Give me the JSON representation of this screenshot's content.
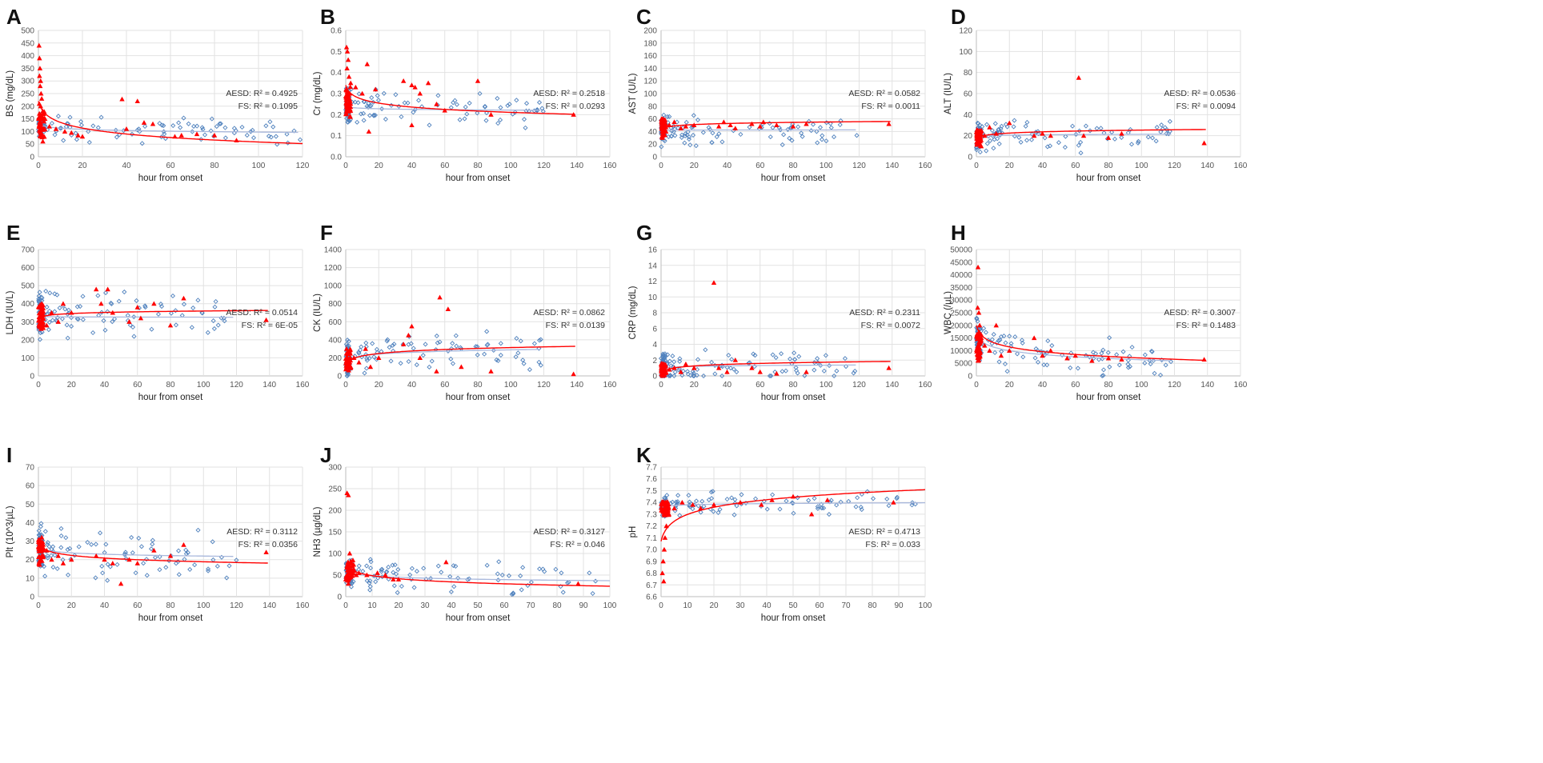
{
  "colors": {
    "aesd": "#ff0000",
    "fs": "#4f81bd",
    "fs_trend": "#a9b8dc",
    "grid": "#e2e2e2"
  },
  "chart_data": [
    {
      "letter": "A",
      "type": "scatter",
      "ylabel": "BS (mg/dL)",
      "xlabel": "hour from onset",
      "xlim": [
        0,
        120
      ],
      "xstep": 20,
      "ylim": [
        0,
        500
      ],
      "ystep": 50,
      "r2_aesd": "AESD: R² = 0.4925",
      "r2_fs": "FS: R² = 0.1095",
      "aesd_trend": {
        "model": "log",
        "a": 220,
        "b": -35
      },
      "fs_trend": {
        "model": "log",
        "a": 130,
        "b": -7
      },
      "fs_seed": 11,
      "fs_base": 125,
      "fs_spread": 40,
      "aesd_seed": 3,
      "aesd_base": 120,
      "aesd_spread": 60,
      "aesd_points": [
        [
          0.3,
          440
        ],
        [
          0.5,
          390
        ],
        [
          0.7,
          350
        ],
        [
          0.5,
          320
        ],
        [
          1,
          300
        ],
        [
          0.8,
          280
        ],
        [
          1.2,
          250
        ],
        [
          1.5,
          230
        ],
        [
          0.4,
          210
        ],
        [
          1,
          200
        ],
        [
          2,
          180
        ],
        [
          1.6,
          160
        ],
        [
          3,
          150
        ],
        [
          2.5,
          140
        ],
        [
          5,
          120
        ],
        [
          8,
          110
        ],
        [
          12,
          100
        ],
        [
          15,
          95
        ],
        [
          18,
          85
        ],
        [
          20,
          80
        ],
        [
          38,
          228
        ],
        [
          45,
          220
        ],
        [
          40,
          110
        ],
        [
          48,
          135
        ],
        [
          52,
          130
        ],
        [
          62,
          80
        ],
        [
          65,
          85
        ],
        [
          72,
          90
        ],
        [
          80,
          85
        ],
        [
          90,
          65
        ]
      ]
    },
    {
      "letter": "B",
      "type": "scatter",
      "ylabel": "Cr (mg/dL)",
      "xlabel": "hour from onset",
      "xlim": [
        0,
        160
      ],
      "xstep": 20,
      "ylim": [
        0,
        0.6
      ],
      "ystep": 0.1,
      "r2_aesd": "AESD: R² = 0.2518",
      "r2_fs": "FS: R² = 0.0293",
      "aesd_trend": {
        "model": "log",
        "a": 0.34,
        "b": -0.028
      },
      "fs_trend": {
        "model": "log",
        "a": 0.24,
        "b": -0.004
      },
      "fs_seed": 17,
      "fs_base": 0.23,
      "fs_spread": 0.07,
      "aesd_seed": 5,
      "aesd_base": 0.26,
      "aesd_spread": 0.08,
      "aesd_points": [
        [
          0.5,
          0.52
        ],
        [
          1,
          0.5
        ],
        [
          1.5,
          0.46
        ],
        [
          0.8,
          0.42
        ],
        [
          2,
          0.38
        ],
        [
          3,
          0.35
        ],
        [
          6,
          0.33
        ],
        [
          13,
          0.44
        ],
        [
          10,
          0.3
        ],
        [
          18,
          0.32
        ],
        [
          35,
          0.36
        ],
        [
          40,
          0.34
        ],
        [
          42,
          0.33
        ],
        [
          45,
          0.3
        ],
        [
          50,
          0.35
        ],
        [
          55,
          0.25
        ],
        [
          60,
          0.22
        ],
        [
          80,
          0.36
        ],
        [
          88,
          0.2
        ],
        [
          138,
          0.2
        ],
        [
          14,
          0.12
        ],
        [
          40,
          0.15
        ]
      ]
    },
    {
      "letter": "C",
      "type": "scatter",
      "ylabel": "AST (U/L)",
      "xlabel": "hour from onset",
      "xlim": [
        0,
        160
      ],
      "xstep": 20,
      "ylim": [
        0,
        200
      ],
      "ystep": 20,
      "r2_aesd": "AESD: R² = 0.0582",
      "r2_fs": "FS: R² = 0.0011",
      "aesd_trend": {
        "model": "log",
        "a": 43,
        "b": 2.6
      },
      "fs_trend": {
        "model": "log",
        "a": 42,
        "b": 0.1
      },
      "fs_seed": 23,
      "fs_base": 42,
      "fs_spread": 18,
      "aesd_seed": 7,
      "aesd_base": 46,
      "aesd_spread": 14,
      "aesd_points": [
        [
          0.5,
          60
        ],
        [
          1,
          55
        ],
        [
          1.5,
          50
        ],
        [
          2,
          45
        ],
        [
          3,
          40
        ],
        [
          5,
          50
        ],
        [
          8,
          55
        ],
        [
          12,
          45
        ],
        [
          15,
          48
        ],
        [
          20,
          50
        ],
        [
          35,
          48
        ],
        [
          38,
          55
        ],
        [
          42,
          50
        ],
        [
          45,
          45
        ],
        [
          55,
          52
        ],
        [
          60,
          48
        ],
        [
          62,
          55
        ],
        [
          70,
          50
        ],
        [
          80,
          48
        ],
        [
          88,
          52
        ],
        [
          138,
          52
        ],
        [
          0.8,
          30
        ]
      ]
    },
    {
      "letter": "D",
      "type": "scatter",
      "ylabel": "ALT (IU/L)",
      "xlabel": "hour from onset",
      "xlim": [
        0,
        160
      ],
      "xstep": 20,
      "ylim": [
        0,
        120
      ],
      "ystep": 20,
      "r2_aesd": "AESD: R² = 0.0536",
      "r2_fs": "FS: R² = 0.0094",
      "aesd_trend": {
        "model": "log",
        "a": 17,
        "b": 1.8
      },
      "fs_trend": {
        "model": "log",
        "a": 19,
        "b": 0.5
      },
      "fs_seed": 29,
      "fs_base": 20,
      "fs_spread": 12,
      "aesd_seed": 9,
      "aesd_base": 18,
      "aesd_spread": 8,
      "aesd_points": [
        [
          0.5,
          20
        ],
        [
          1,
          18
        ],
        [
          1.5,
          15
        ],
        [
          2,
          22
        ],
        [
          3,
          25
        ],
        [
          5,
          20
        ],
        [
          8,
          28
        ],
        [
          12,
          22
        ],
        [
          20,
          32
        ],
        [
          35,
          20
        ],
        [
          40,
          22
        ],
        [
          45,
          20
        ],
        [
          62,
          75
        ],
        [
          65,
          20
        ],
        [
          80,
          18
        ],
        [
          88,
          22
        ],
        [
          138,
          13
        ],
        [
          0.8,
          12
        ]
      ]
    },
    {
      "letter": "E",
      "type": "scatter",
      "ylabel": "LDH (IU/L)",
      "xlabel": "hour from onset",
      "xlim": [
        0,
        160
      ],
      "xstep": 20,
      "ylim": [
        0,
        700
      ],
      "ystep": 100,
      "r2_aesd": "AESD: R² = 0.0514",
      "r2_fs": "FS: R² = 6E-05",
      "aesd_trend": {
        "model": "log",
        "a": 318,
        "b": 9
      },
      "fs_trend": {
        "model": "log",
        "a": 330,
        "b": -1
      },
      "fs_seed": 31,
      "fs_base": 330,
      "fs_spread": 110,
      "aesd_seed": 13,
      "aesd_base": 330,
      "aesd_spread": 70,
      "aesd_points": [
        [
          0.5,
          380
        ],
        [
          1,
          350
        ],
        [
          1.5,
          300
        ],
        [
          2,
          400
        ],
        [
          3,
          320
        ],
        [
          5,
          280
        ],
        [
          8,
          350
        ],
        [
          12,
          300
        ],
        [
          15,
          400
        ],
        [
          20,
          350
        ],
        [
          35,
          480
        ],
        [
          38,
          400
        ],
        [
          42,
          480
        ],
        [
          45,
          350
        ],
        [
          55,
          300
        ],
        [
          60,
          380
        ],
        [
          62,
          320
        ],
        [
          70,
          400
        ],
        [
          80,
          280
        ],
        [
          88,
          430
        ],
        [
          138,
          310
        ]
      ]
    },
    {
      "letter": "F",
      "type": "scatter",
      "ylabel": "CK (IU/L)",
      "xlabel": "hour from onset",
      "xlim": [
        0,
        160
      ],
      "xstep": 20,
      "ylim": [
        0,
        1400
      ],
      "ystep": 200,
      "r2_aesd": "AESD: R² = 0.0862",
      "r2_fs": "FS: R² = 0.0139",
      "aesd_trend": {
        "model": "log",
        "a": 120,
        "b": 42
      },
      "fs_trend": {
        "model": "log",
        "a": 150,
        "b": 30
      },
      "fs_seed": 37,
      "fs_base": 180,
      "fs_spread": 160,
      "aesd_seed": 15,
      "aesd_base": 180,
      "aesd_spread": 120,
      "aesd_points": [
        [
          0.5,
          300
        ],
        [
          1,
          250
        ],
        [
          2,
          150
        ],
        [
          3,
          100
        ],
        [
          5,
          200
        ],
        [
          8,
          150
        ],
        [
          12,
          300
        ],
        [
          15,
          100
        ],
        [
          20,
          200
        ],
        [
          35,
          350
        ],
        [
          38,
          450
        ],
        [
          40,
          550
        ],
        [
          45,
          200
        ],
        [
          55,
          50
        ],
        [
          57,
          870
        ],
        [
          62,
          740
        ],
        [
          70,
          100
        ],
        [
          88,
          50
        ],
        [
          138,
          20
        ]
      ]
    },
    {
      "letter": "G",
      "type": "scatter",
      "ylabel": "CRP (mg/dL)",
      "xlabel": "hour from onset",
      "xlim": [
        0,
        160
      ],
      "xstep": 20,
      "ylim": [
        0,
        16
      ],
      "ystep": 2,
      "r2_aesd": "AESD: R² = 0.2311",
      "r2_fs": "FS: R² = 0.0072",
      "aesd_trend": {
        "model": "log",
        "a": 0.35,
        "b": 0.3
      },
      "fs_trend": {
        "model": "log",
        "a": 0.9,
        "b": 0.1
      },
      "fs_seed": 41,
      "fs_base": 1.2,
      "fs_spread": 1.6,
      "aesd_seed": 19,
      "aesd_base": 0.8,
      "aesd_spread": 0.8,
      "aesd_points": [
        [
          0.5,
          0.2
        ],
        [
          1,
          0.3
        ],
        [
          2,
          0.1
        ],
        [
          3,
          0.5
        ],
        [
          5,
          0.8
        ],
        [
          8,
          1
        ],
        [
          12,
          0.5
        ],
        [
          15,
          1.5
        ],
        [
          20,
          1
        ],
        [
          32,
          11.8
        ],
        [
          35,
          1
        ],
        [
          40,
          0.5
        ],
        [
          45,
          2
        ],
        [
          55,
          1
        ],
        [
          60,
          0.5
        ],
        [
          70,
          0.3
        ],
        [
          88,
          0.5
        ],
        [
          138,
          1
        ]
      ]
    },
    {
      "letter": "H",
      "type": "scatter",
      "ylabel": "WBC (/µL)",
      "xlabel": "hour from onset",
      "xlim": [
        0,
        160
      ],
      "xstep": 20,
      "ylim": [
        0,
        50000
      ],
      "ystep": 5000,
      "r2_aesd": "AESD: R² = 0.3007",
      "r2_fs": "FS: R² = 0.1483",
      "aesd_trend": {
        "model": "log",
        "a": 20000,
        "b": -2800
      },
      "fs_trend": {
        "model": "log",
        "a": 17000,
        "b": -2300
      },
      "fs_seed": 43,
      "fs_base": 11000,
      "fs_spread": 6000,
      "aesd_seed": 21,
      "aesd_base": 12000,
      "aesd_spread": 6000,
      "aesd_points": [
        [
          1,
          43000
        ],
        [
          0.8,
          27000
        ],
        [
          1.5,
          25000
        ],
        [
          2,
          20000
        ],
        [
          3,
          15000
        ],
        [
          5,
          12000
        ],
        [
          8,
          10000
        ],
        [
          12,
          20000
        ],
        [
          15,
          8000
        ],
        [
          20,
          10000
        ],
        [
          35,
          15000
        ],
        [
          40,
          8000
        ],
        [
          45,
          10000
        ],
        [
          55,
          7000
        ],
        [
          60,
          8000
        ],
        [
          70,
          6000
        ],
        [
          80,
          7000
        ],
        [
          88,
          6500
        ],
        [
          138,
          6500
        ]
      ]
    },
    {
      "letter": "I",
      "type": "scatter",
      "ylabel": "Plt (10^3/µL)",
      "xlabel": "hour from onset",
      "xlim": [
        0,
        160
      ],
      "xstep": 20,
      "ylim": [
        0,
        70
      ],
      "ystep": 10,
      "r2_aesd": "AESD: R² = 0.3112",
      "r2_fs": "FS: R² = 0.0356",
      "aesd_trend": {
        "model": "log",
        "a": 29,
        "b": -2.2
      },
      "fs_trend": {
        "model": "log",
        "a": 27,
        "b": -1.1
      },
      "fs_seed": 47,
      "fs_base": 26,
      "fs_spread": 10,
      "aesd_seed": 25,
      "aesd_base": 24,
      "aesd_spread": 7,
      "aesd_points": [
        [
          0.5,
          30
        ],
        [
          1,
          28
        ],
        [
          1.5,
          25
        ],
        [
          2,
          32
        ],
        [
          3,
          22
        ],
        [
          5,
          25
        ],
        [
          8,
          20
        ],
        [
          12,
          22
        ],
        [
          15,
          18
        ],
        [
          20,
          20
        ],
        [
          35,
          22
        ],
        [
          40,
          20
        ],
        [
          45,
          18
        ],
        [
          50,
          7
        ],
        [
          55,
          20
        ],
        [
          60,
          18
        ],
        [
          70,
          25
        ],
        [
          80,
          22
        ],
        [
          88,
          28
        ],
        [
          138,
          24
        ]
      ]
    },
    {
      "letter": "J",
      "type": "scatter",
      "ylabel": "NH3 (µg/dL)",
      "xlabel": "hour from onset",
      "xlim": [
        0,
        100
      ],
      "xstep": 10,
      "ylim": [
        0,
        300
      ],
      "ystep": 50,
      "r2_aesd": "AESD: R² = 0.3127",
      "r2_fs": "FS: R² = 0.046",
      "aesd_trend": {
        "model": "log",
        "a": 75,
        "b": -11
      },
      "fs_trend": {
        "model": "log",
        "a": 60,
        "b": -5
      },
      "fs_seed": 53,
      "fs_base": 55,
      "fs_spread": 30,
      "aesd_seed": 27,
      "aesd_base": 60,
      "aesd_spread": 25,
      "aesd_points": [
        [
          0.5,
          240
        ],
        [
          1,
          235
        ],
        [
          1.5,
          100
        ],
        [
          2,
          80
        ],
        [
          3,
          60
        ],
        [
          4,
          50
        ],
        [
          5,
          55
        ],
        [
          8,
          50
        ],
        [
          12,
          55
        ],
        [
          15,
          50
        ],
        [
          18,
          40
        ],
        [
          20,
          40
        ],
        [
          38,
          80
        ],
        [
          88,
          30
        ],
        [
          1,
          30
        ]
      ]
    },
    {
      "letter": "K",
      "type": "scatter",
      "ylabel": "pH",
      "xlabel": "hour from onset",
      "xlim": [
        0,
        100
      ],
      "xstep": 10,
      "ylim": [
        6.6,
        7.7
      ],
      "ystep": 0.1,
      "r2_aesd": "AESD: R² = 0.4713",
      "r2_fs": "FS: R² = 0.033",
      "aesd_trend": {
        "model": "log",
        "a": 7.07,
        "b": 0.095
      },
      "fs_trend": {
        "model": "log",
        "a": 7.36,
        "b": 0.008
      },
      "fs_seed": 59,
      "fs_base": 7.38,
      "fs_spread": 0.08,
      "aesd_seed": 29,
      "aesd_base": 7.35,
      "aesd_spread": 0.06,
      "aesd_points": [
        [
          0.5,
          6.8
        ],
        [
          0.8,
          6.9
        ],
        [
          1,
          6.73
        ],
        [
          1.2,
          7.0
        ],
        [
          1.5,
          7.1
        ],
        [
          2,
          7.2
        ],
        [
          3,
          7.3
        ],
        [
          5,
          7.35
        ],
        [
          8,
          7.4
        ],
        [
          12,
          7.38
        ],
        [
          15,
          7.35
        ],
        [
          20,
          7.38
        ],
        [
          30,
          7.4
        ],
        [
          38,
          7.38
        ],
        [
          42,
          7.42
        ],
        [
          50,
          7.45
        ],
        [
          57,
          7.3
        ],
        [
          63,
          7.42
        ],
        [
          88,
          7.4
        ]
      ]
    }
  ]
}
